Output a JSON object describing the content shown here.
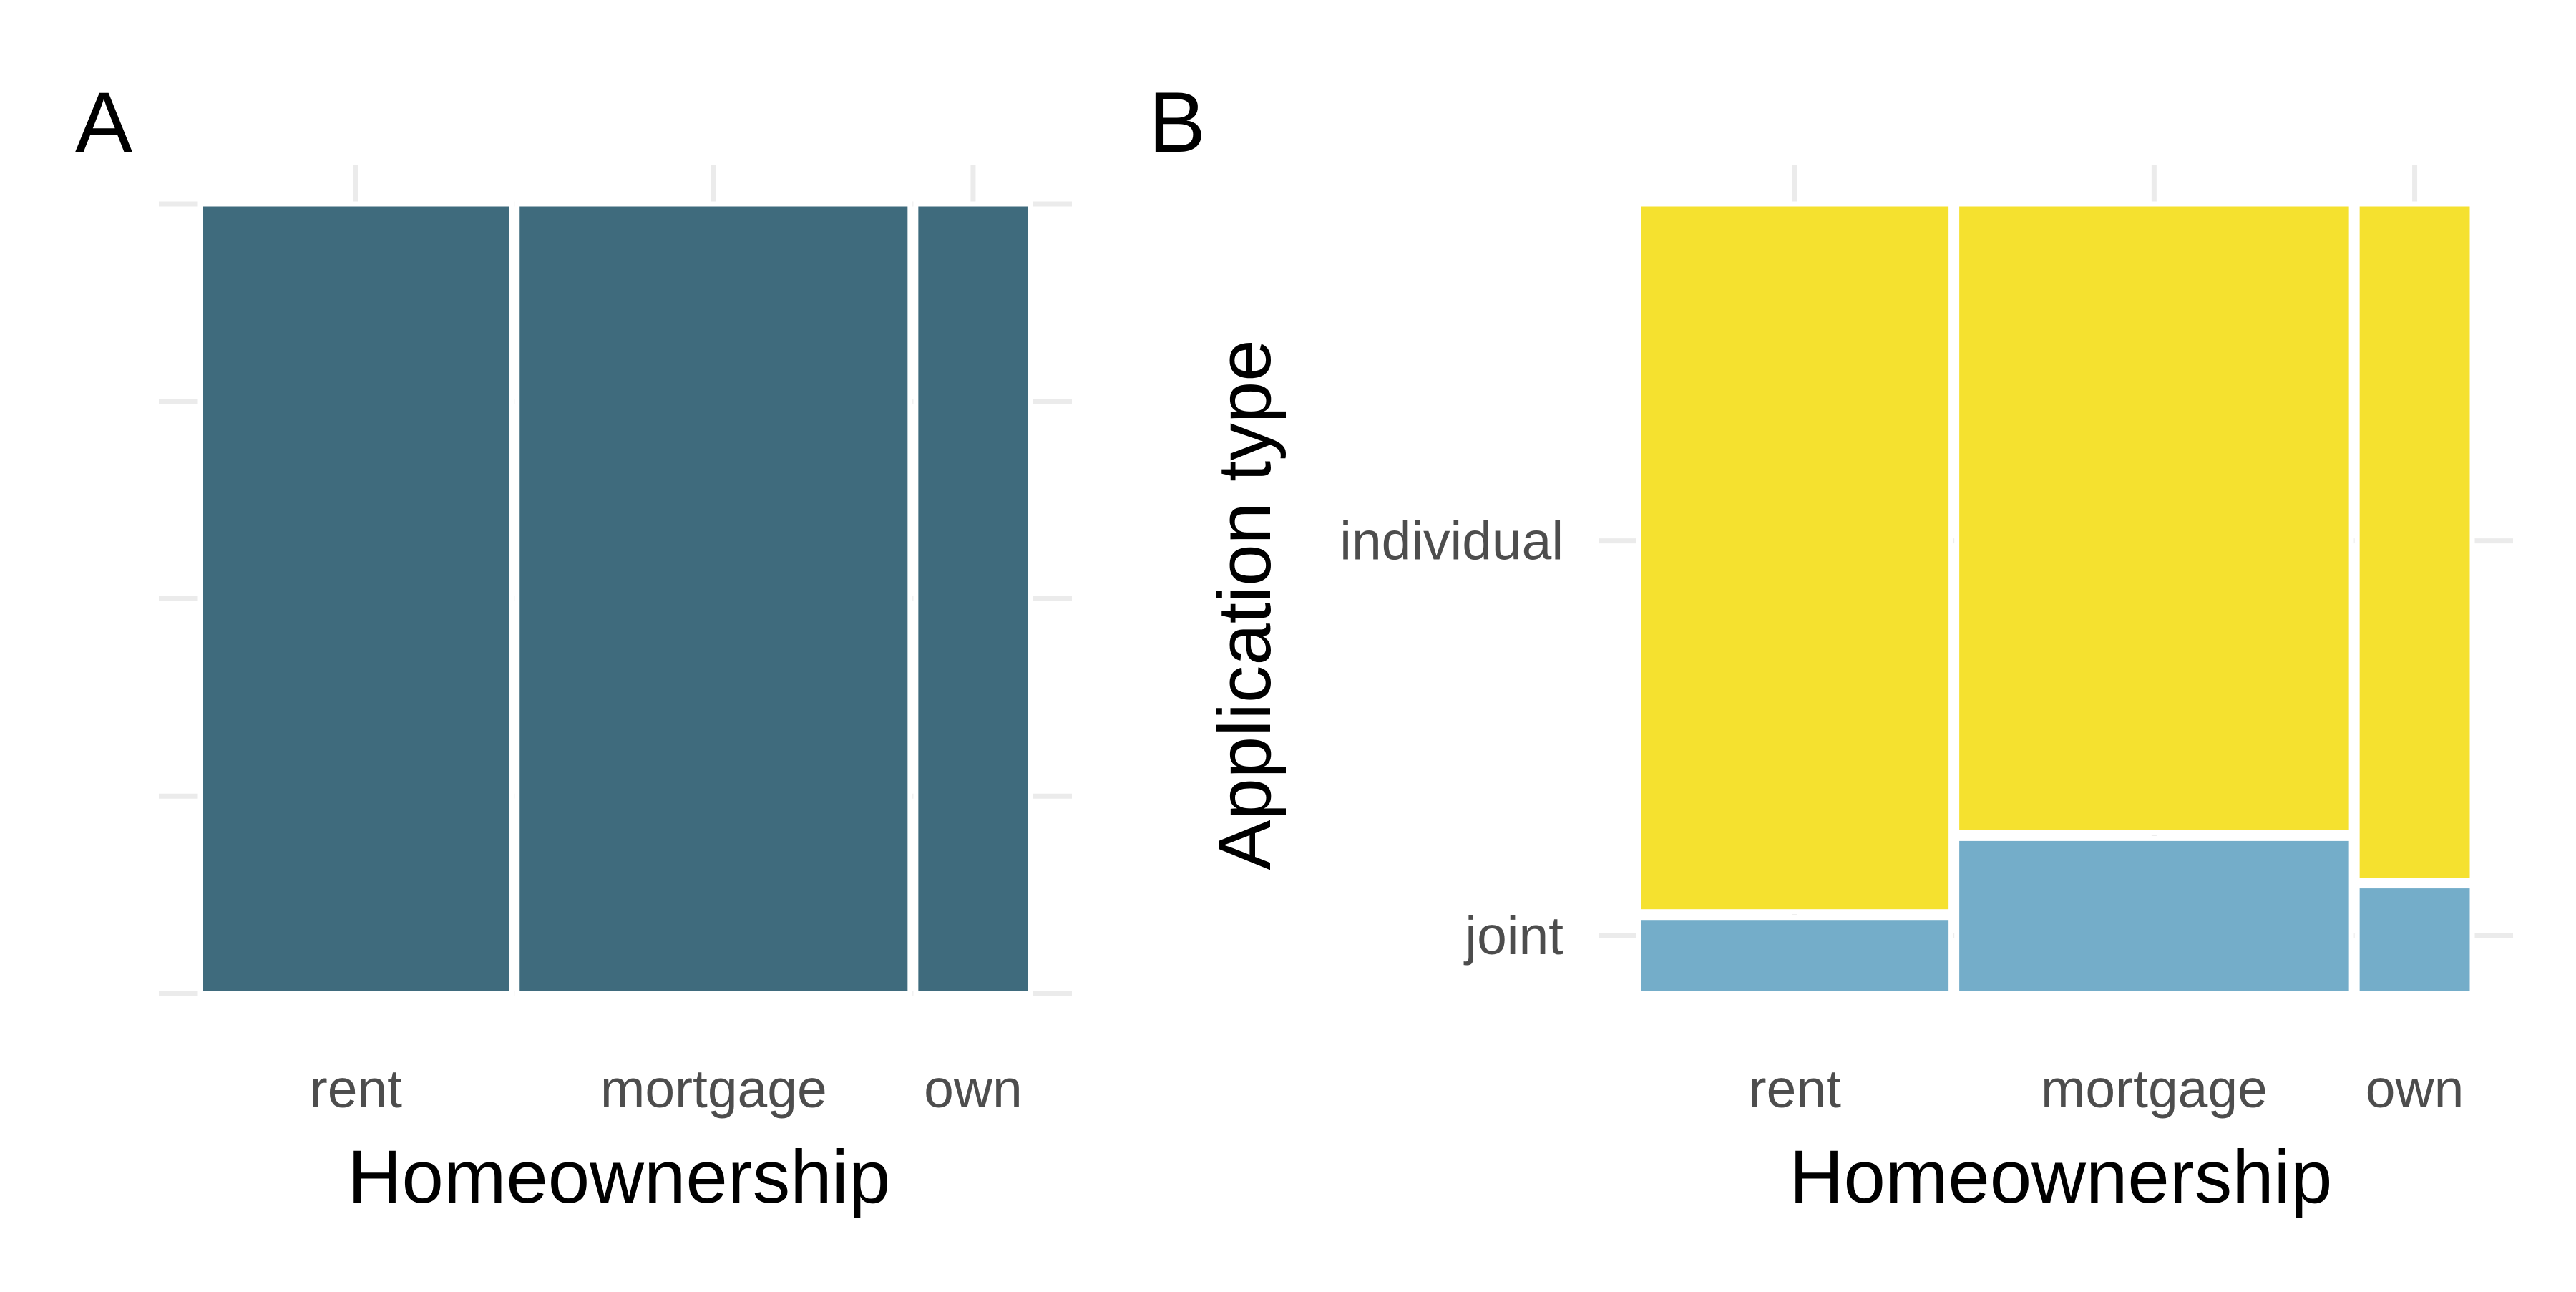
{
  "chart_data": [
    {
      "type": "mosaic",
      "panel_label": "A",
      "xlabel": "Homeownership",
      "ylabel": "",
      "categories": [
        "rent",
        "mortgage",
        "own"
      ],
      "category_proportions": [
        0.38,
        0.48,
        0.14
      ],
      "fill": "#3f6b7d",
      "grid": true
    },
    {
      "type": "mosaic",
      "panel_label": "B",
      "xlabel": "Homeownership",
      "ylabel": "Application type",
      "categories": [
        "rent",
        "mortgage",
        "own"
      ],
      "category_proportions": [
        0.38,
        0.48,
        0.14
      ],
      "series": [
        {
          "name": "joint",
          "values": [
            0.1,
            0.2,
            0.14
          ],
          "color": "#74adc9"
        },
        {
          "name": "individual",
          "values": [
            0.9,
            0.8,
            0.86
          ],
          "color": "#f5e12f"
        }
      ],
      "grid": true
    }
  ]
}
